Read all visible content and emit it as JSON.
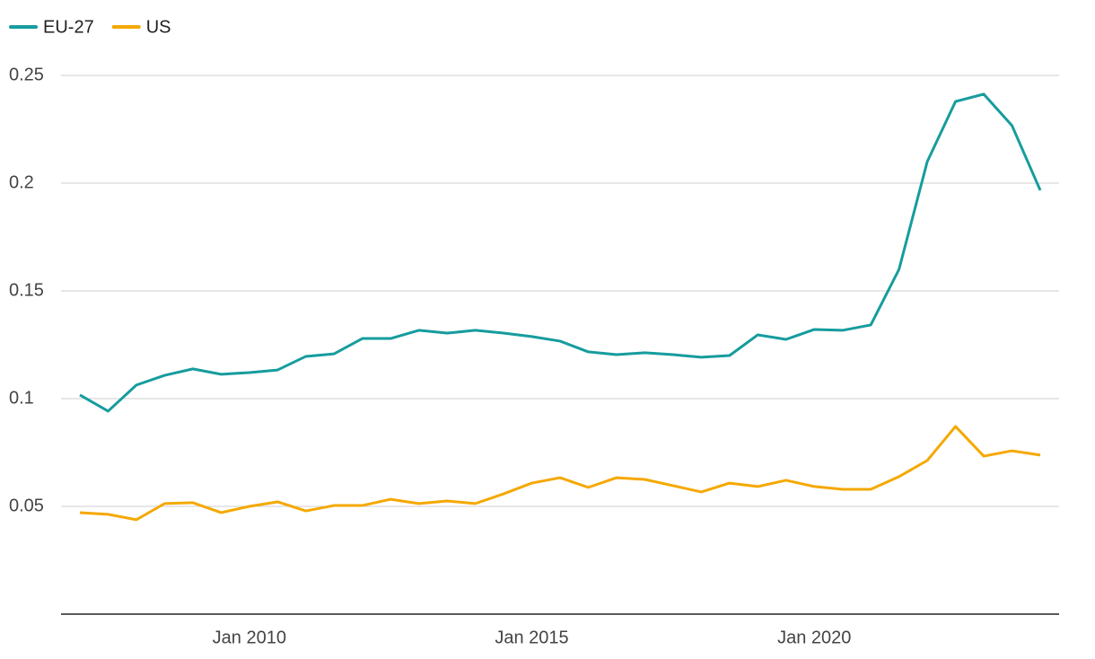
{
  "chart_data": {
    "type": "line",
    "x": [
      "2007-01",
      "2007-07",
      "2008-01",
      "2008-07",
      "2009-01",
      "2009-07",
      "2010-01",
      "2010-07",
      "2011-01",
      "2011-07",
      "2012-01",
      "2012-07",
      "2013-01",
      "2013-07",
      "2014-01",
      "2014-07",
      "2015-01",
      "2015-07",
      "2016-01",
      "2016-07",
      "2017-01",
      "2017-07",
      "2018-01",
      "2018-07",
      "2019-01",
      "2019-07",
      "2020-01",
      "2020-07",
      "2021-01",
      "2021-07",
      "2022-01",
      "2022-07",
      "2023-01",
      "2023-07",
      "2024-01"
    ],
    "series": [
      {
        "name": "EU-27",
        "color": "#169c9e",
        "values": [
          0.1017,
          0.0942,
          0.1063,
          0.1108,
          0.1138,
          0.1113,
          0.1121,
          0.1133,
          0.1196,
          0.1208,
          0.1279,
          0.1279,
          0.1317,
          0.1304,
          0.1317,
          0.1304,
          0.1288,
          0.1267,
          0.1217,
          0.1204,
          0.1213,
          0.1204,
          0.1192,
          0.12,
          0.1296,
          0.1275,
          0.1321,
          0.1317,
          0.1342,
          0.16,
          0.21,
          0.2379,
          0.2413,
          0.2267,
          0.1967
        ]
      },
      {
        "name": "US",
        "color": "#f5a800",
        "values": [
          0.0471,
          0.0463,
          0.0438,
          0.0513,
          0.0517,
          0.0471,
          0.05,
          0.0521,
          0.0479,
          0.0504,
          0.0504,
          0.0533,
          0.0513,
          0.0525,
          0.0513,
          0.0558,
          0.0608,
          0.0633,
          0.0588,
          0.0633,
          0.0625,
          0.0596,
          0.0567,
          0.0608,
          0.0592,
          0.0621,
          0.0592,
          0.0579,
          0.0579,
          0.0638,
          0.0713,
          0.0871,
          0.0733,
          0.0758,
          0.0738
        ]
      }
    ],
    "ylim": [
      0,
      0.25
    ],
    "yticks": [
      0.05,
      0.1,
      0.15,
      0.2,
      0.25
    ],
    "xticks": [
      {
        "value": "2010-01",
        "label": "Jan 2010"
      },
      {
        "value": "2015-01",
        "label": "Jan 2015"
      },
      {
        "value": "2020-01",
        "label": "Jan 2020"
      }
    ],
    "grid": true,
    "legend": "top-left"
  }
}
